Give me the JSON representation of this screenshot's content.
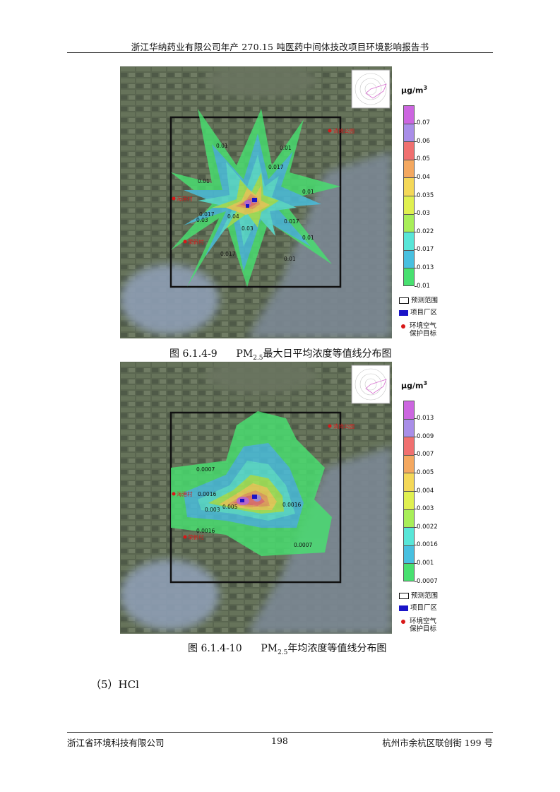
{
  "header": {
    "title": "浙江华纳药业有限公司年产 270.15 吨医药中间体技改项目环境影响报告书"
  },
  "figures": [
    {
      "caption_num": "图 6.1.4-9",
      "caption_pm": "PM",
      "caption_sub": "2.5",
      "caption_rest": "最大日平均浓度等值线分布图",
      "unit": "μg/m",
      "unit_sup": "3",
      "scale_values": [
        "0.07",
        "0.06",
        "0.05",
        "0.04",
        "0.035",
        "0.03",
        "0.022",
        "0.017",
        "0.013",
        "0.01"
      ],
      "scale_colors": [
        "#cc66e0",
        "#a98ee8",
        "#f07070",
        "#f4a860",
        "#f4d858",
        "#e0f050",
        "#a8ee58",
        "#58e6d8",
        "#48c0e0",
        "#48e070"
      ],
      "contour_labels": [
        "0.01",
        "0.017",
        "0.01",
        "0.01",
        "0.01",
        "0.017",
        "0.03",
        "0.04",
        "0.03",
        "0.017",
        "0.01",
        "0.017",
        "0.01"
      ]
    },
    {
      "caption_num": "图 6.1.4-10",
      "caption_pm": "PM",
      "caption_sub": "2.5",
      "caption_rest": "年均浓度等值线分布图",
      "unit": "μg/m",
      "unit_sup": "3",
      "scale_values": [
        "0.013",
        "0.009",
        "0.007",
        "0.005",
        "0.004",
        "0.003",
        "0.0022",
        "0.0016",
        "0.001",
        "0.0007"
      ],
      "scale_colors": [
        "#cc66e0",
        "#a98ee8",
        "#f07070",
        "#f4a860",
        "#f4d858",
        "#e0f050",
        "#a8ee58",
        "#58e6d8",
        "#48c0e0",
        "#48e070"
      ],
      "contour_labels": [
        "0.0007",
        "0.0016",
        "0.003",
        "0.005",
        "0.0016",
        "0.0016",
        "0.0007"
      ]
    }
  ],
  "legend_items": {
    "range": "预测范围",
    "site": "项目厂区",
    "target_line1": "环境空气",
    "target_line2": "保护目标"
  },
  "section": {
    "heading": "（5）HCl"
  },
  "footer": {
    "left": "浙江省环境科技有限公司",
    "page": "198",
    "right": "杭州市余杭区联创街 199 号"
  }
}
